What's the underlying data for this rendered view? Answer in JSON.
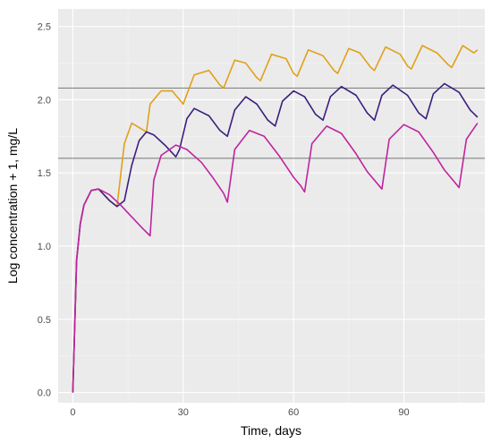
{
  "chart_data": {
    "type": "line",
    "xlabel": "Time, days",
    "ylabel": "Log concentration + 1, mg/L",
    "xlim": [
      -4,
      112
    ],
    "ylim": [
      -0.07,
      2.62
    ],
    "x_ticks": [
      0,
      30,
      60,
      90
    ],
    "y_ticks": [
      0.0,
      0.5,
      1.0,
      1.5,
      2.0,
      2.5
    ],
    "x_tick_labels": [
      "0",
      "30",
      "60",
      "90"
    ],
    "y_tick_labels": [
      "0.0",
      "0.5",
      "1.0",
      "1.5",
      "2.0",
      "2.5"
    ],
    "grid": true,
    "background": "#ebebeb",
    "reference_lines": [
      {
        "y": 2.08,
        "color": "#777777"
      },
      {
        "y": 1.6,
        "color": "#777777"
      }
    ],
    "series": [
      {
        "color": "#e0a11b",
        "x": [
          0,
          1,
          2,
          3,
          5,
          7,
          10,
          12,
          14,
          16,
          20,
          21,
          24,
          27,
          29,
          30,
          33,
          37,
          40,
          41,
          44,
          47,
          50,
          51,
          54,
          58,
          60,
          61,
          64,
          68,
          71,
          72,
          75,
          78,
          81,
          82,
          85,
          89,
          91,
          92,
          95,
          99,
          102,
          103,
          106,
          109,
          110
        ],
        "y": [
          0.0,
          0.9,
          1.15,
          1.28,
          1.38,
          1.39,
          1.31,
          1.27,
          1.7,
          1.84,
          1.78,
          1.97,
          2.06,
          2.06,
          2.0,
          1.97,
          2.17,
          2.2,
          2.1,
          2.08,
          2.27,
          2.25,
          2.15,
          2.13,
          2.31,
          2.28,
          2.18,
          2.16,
          2.34,
          2.3,
          2.2,
          2.18,
          2.35,
          2.32,
          2.22,
          2.2,
          2.36,
          2.31,
          2.23,
          2.21,
          2.37,
          2.32,
          2.24,
          2.22,
          2.37,
          2.32,
          2.34
        ]
      },
      {
        "color": "#3b1f7e",
        "x": [
          0,
          1,
          2,
          3,
          5,
          7,
          10,
          12,
          14,
          16,
          18,
          20,
          22,
          25,
          28,
          29,
          31,
          33,
          37,
          40,
          42,
          44,
          47,
          50,
          53,
          55,
          57,
          60,
          63,
          66,
          68,
          70,
          73,
          77,
          80,
          82,
          84,
          87,
          91,
          94,
          96,
          98,
          101,
          105,
          108,
          110
        ],
        "y": [
          0.0,
          0.9,
          1.15,
          1.28,
          1.38,
          1.39,
          1.31,
          1.27,
          1.31,
          1.55,
          1.72,
          1.78,
          1.76,
          1.69,
          1.61,
          1.66,
          1.87,
          1.94,
          1.89,
          1.79,
          1.75,
          1.93,
          2.02,
          1.97,
          1.86,
          1.82,
          1.99,
          2.06,
          2.02,
          1.9,
          1.86,
          2.02,
          2.09,
          2.03,
          1.91,
          1.86,
          2.03,
          2.1,
          2.03,
          1.91,
          1.87,
          2.04,
          2.11,
          2.05,
          1.93,
          1.88
        ]
      },
      {
        "color": "#c0249e",
        "x": [
          0,
          1,
          2,
          3,
          5,
          7,
          10,
          13,
          16,
          19,
          21,
          22,
          24,
          28,
          31,
          35,
          38,
          41,
          42,
          44,
          48,
          52,
          56,
          60,
          62,
          63,
          65,
          69,
          73,
          77,
          80,
          83,
          84,
          86,
          90,
          94,
          98,
          101,
          104,
          105,
          107,
          110
        ],
        "y": [
          0.0,
          0.9,
          1.15,
          1.28,
          1.38,
          1.39,
          1.35,
          1.28,
          1.2,
          1.12,
          1.07,
          1.45,
          1.62,
          1.69,
          1.66,
          1.57,
          1.47,
          1.36,
          1.3,
          1.66,
          1.79,
          1.75,
          1.62,
          1.47,
          1.41,
          1.37,
          1.7,
          1.82,
          1.77,
          1.63,
          1.51,
          1.42,
          1.39,
          1.73,
          1.83,
          1.78,
          1.64,
          1.52,
          1.43,
          1.4,
          1.73,
          1.84
        ]
      }
    ]
  }
}
